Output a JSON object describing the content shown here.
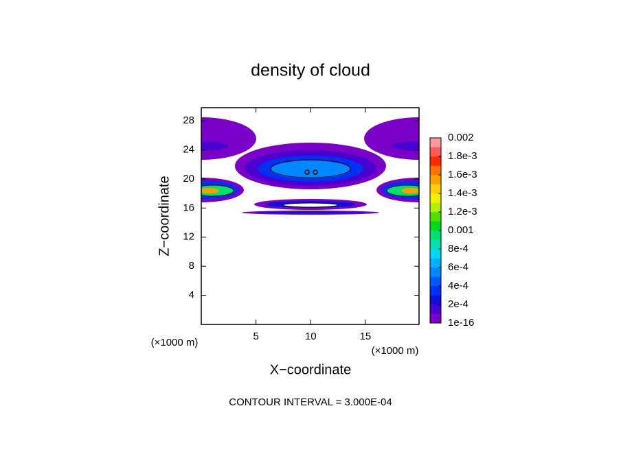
{
  "chart_data": {
    "type": "contour",
    "title": "density of cloud",
    "x_label": "X−coordinate",
    "y_label": "Z−coordinate",
    "y_unit": "(×1000 m)",
    "x_unit": "(×1000 m)",
    "footnote": "CONTOUR INTERVAL = 3.000E-04",
    "xlim": [
      0,
      19.9
    ],
    "ylim": [
      0,
      29.8
    ],
    "xticks": [
      5,
      10,
      15
    ],
    "yticks": [
      4,
      8,
      12,
      16,
      20,
      24,
      28
    ],
    "colorbar": {
      "lim": [
        1e-16,
        0.002
      ],
      "ticks": [
        1e-16,
        {
          "value": 0.0002,
          "label": "2e-4"
        },
        {
          "value": 0.0004,
          "label": "4e-4"
        },
        {
          "value": 0.0006,
          "label": "6e-4"
        },
        {
          "value": 0.0008,
          "label": "8e-4"
        },
        0.001,
        {
          "value": 0.0012,
          "label": "1.2e-3"
        },
        {
          "value": 0.0014,
          "label": "1.4e-3"
        },
        {
          "value": 0.0016,
          "label": "1.6e-3"
        },
        {
          "value": 0.0018,
          "label": "1.8e-3"
        },
        0.002
      ],
      "colors": [
        "#7a00c8",
        "#4a00d0",
        "#1010d8",
        "#0030f0",
        "#0058ff",
        "#0088ff",
        "#00b0ff",
        "#00d8f0",
        "#00e0b0",
        "#00e070",
        "#00d820",
        "#50e000",
        "#b0f000",
        "#f0f000",
        "#ffd000",
        "#ffa000",
        "#ff7000",
        "#ff2a00",
        "#ff5a5a",
        "#ff9a9a"
      ]
    }
  }
}
